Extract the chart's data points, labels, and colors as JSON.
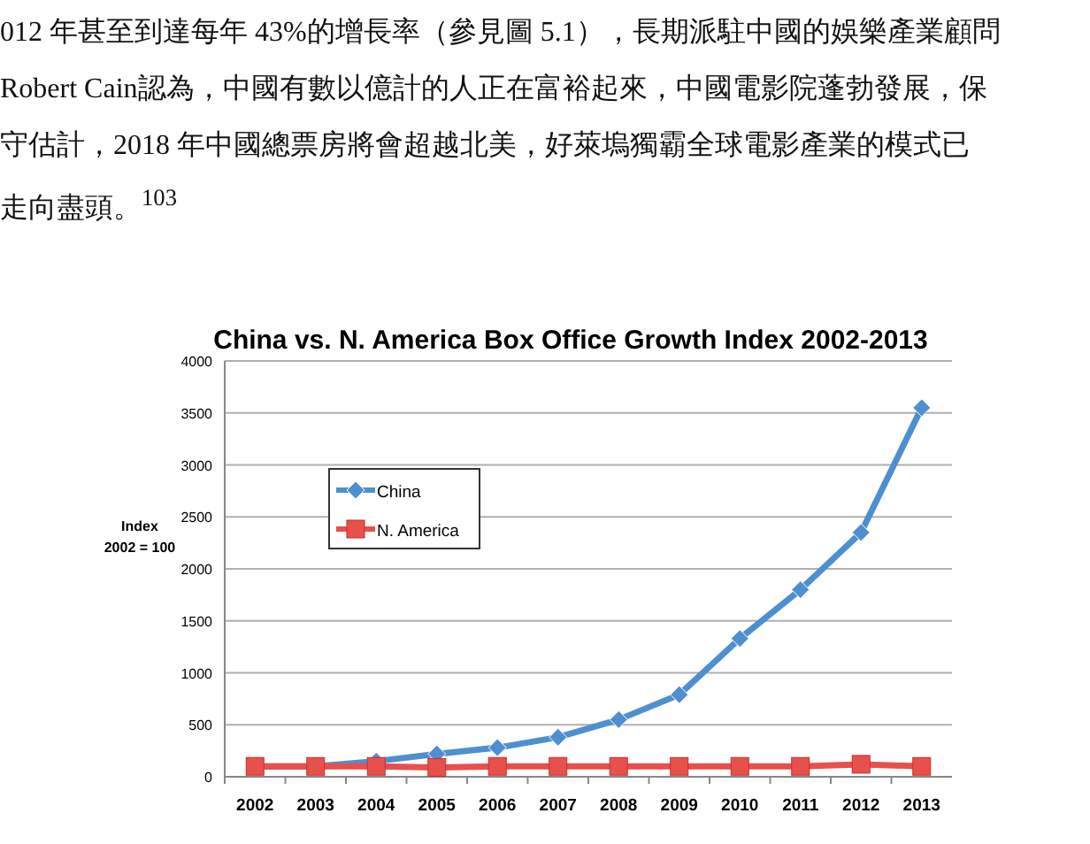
{
  "chart_data": {
    "type": "line",
    "title": "China vs. N. America Box Office Growth Index 2002-2013",
    "ylabel": "Index\n2002 = 100",
    "categories": [
      "2002",
      "2003",
      "2004",
      "2005",
      "2006",
      "2007",
      "2008",
      "2009",
      "2010",
      "2011",
      "2012",
      "2013"
    ],
    "series": [
      {
        "name": "China",
        "color": "#4f8fd0",
        "marker": "diamond",
        "values": [
          100,
          100,
          150,
          220,
          280,
          380,
          550,
          790,
          1330,
          1800,
          2350,
          3550
        ]
      },
      {
        "name": "N. America",
        "color": "#e8504c",
        "marker": "square",
        "values": [
          100,
          100,
          100,
          90,
          100,
          100,
          100,
          100,
          100,
          100,
          120,
          100
        ]
      }
    ],
    "ylim": [
      0,
      4000
    ],
    "yticks": [
      0,
      500,
      1000,
      1500,
      2000,
      2500,
      3000,
      3500,
      4000
    ],
    "grid": "y",
    "legend": "top left",
    "annotations": [
      "012 年甚至到達每年 43%的增長率（參見圖 5.1），長期派駐中國的娛樂產業顧問",
      "Robert Cain認為，中國有數以億計的人正在富裕起來，中國電影院蓬勃發展，保",
      "守估計，2018 年中國總票房將會超越北美，好萊塢獨霸全球電影產業的模式已",
      "走向盡頭。$^{103}$"
    ]
  }
}
